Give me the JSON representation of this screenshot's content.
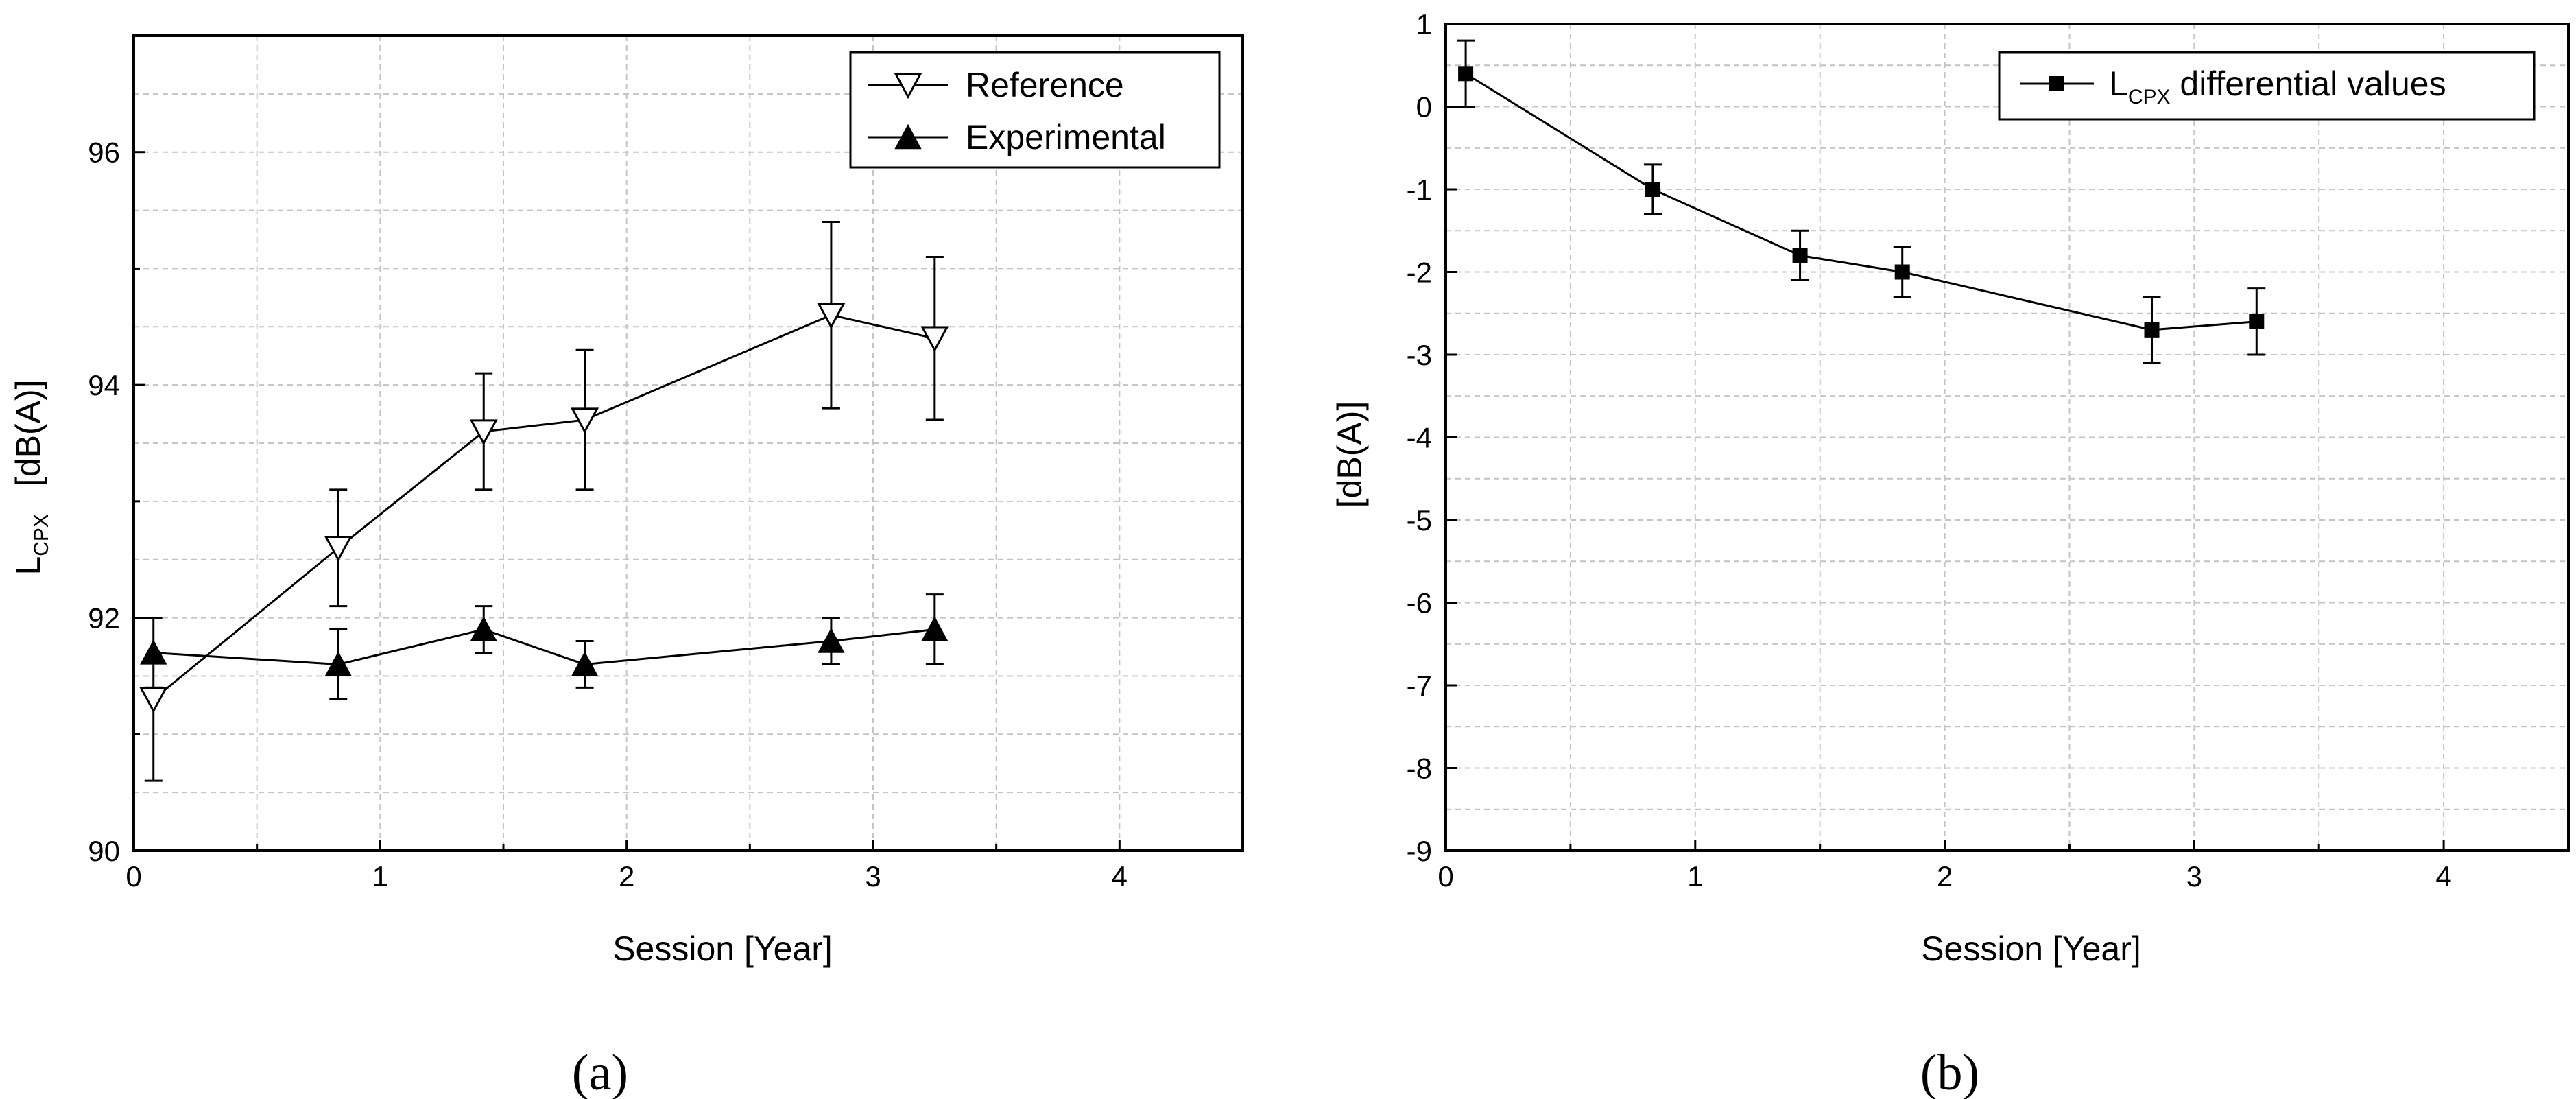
{
  "chart_data": [
    {
      "panel": "a",
      "type": "line",
      "xlabel": "Session   [Year]",
      "ylabel_main": "L",
      "ylabel_sub": "CPX",
      "ylabel_unit": "[dB(A)]",
      "xlim": [
        0,
        4.5
      ],
      "ylim": [
        90,
        97
      ],
      "xticks": [
        0,
        1,
        2,
        3,
        4
      ],
      "yticks": [
        90,
        92,
        94,
        96
      ],
      "yminor": [
        91,
        93,
        95
      ],
      "grid": true,
      "legend": "top-right",
      "series": [
        {
          "name": "Reference",
          "marker": "triangle-down-open",
          "x": [
            0.08,
            0.83,
            1.42,
            1.83,
            2.83,
            3.25
          ],
          "y": [
            91.3,
            92.6,
            93.6,
            93.7,
            94.6,
            94.4
          ],
          "err_low": [
            90.6,
            92.1,
            93.1,
            93.1,
            93.8,
            93.7
          ],
          "err_high": [
            91.4,
            93.1,
            94.1,
            94.3,
            95.4,
            95.1
          ]
        },
        {
          "name": "Experimental",
          "marker": "triangle-up-filled",
          "x": [
            0.08,
            0.83,
            1.42,
            1.83,
            2.83,
            3.25
          ],
          "y": [
            91.7,
            91.6,
            91.9,
            91.6,
            91.8,
            91.9
          ],
          "err_low": [
            91.4,
            91.3,
            91.7,
            91.4,
            91.6,
            91.6
          ],
          "err_high": [
            92.0,
            91.9,
            92.1,
            91.8,
            92.0,
            92.2
          ]
        }
      ]
    },
    {
      "panel": "b",
      "type": "line",
      "xlabel": "Session   [Year]",
      "ylabel_unit": "[dB(A)]",
      "xlim": [
        0,
        4.5
      ],
      "ylim": [
        -9,
        1
      ],
      "xticks": [
        0,
        1,
        2,
        3,
        4
      ],
      "yticks": [
        -9,
        -8,
        -7,
        -6,
        -5,
        -4,
        -3,
        -2,
        -1,
        0,
        1
      ],
      "grid": true,
      "legend": "top-right",
      "series": [
        {
          "name_main": "L",
          "name_sub": "CPX",
          "name_rest": " differential values",
          "marker": "square-filled",
          "x": [
            0.08,
            0.83,
            1.42,
            1.83,
            2.83,
            3.25
          ],
          "y": [
            0.4,
            -1.0,
            -1.8,
            -2.0,
            -2.7,
            -2.6
          ],
          "err_low": [
            0.0,
            -1.3,
            -2.1,
            -2.3,
            -3.1,
            -3.0
          ],
          "err_high": [
            0.8,
            -0.7,
            -1.5,
            -1.7,
            -2.3,
            -2.2
          ]
        }
      ]
    }
  ],
  "panel_labels": {
    "a": "(a)",
    "b": "(b)"
  }
}
